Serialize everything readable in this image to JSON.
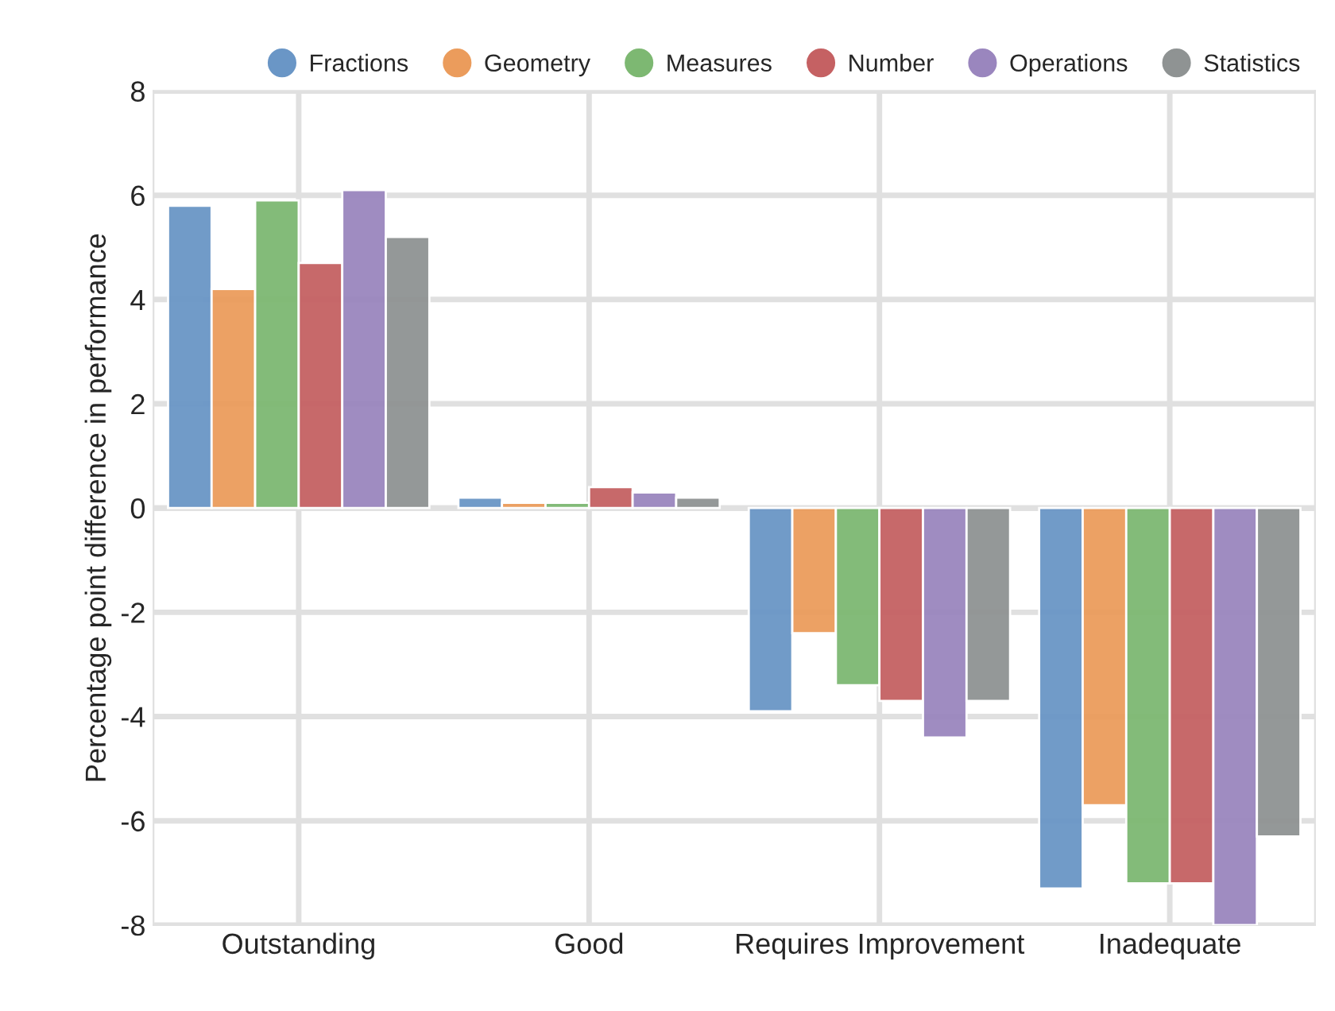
{
  "chart_data": {
    "type": "bar",
    "ylabel": "Percentage point difference in performance",
    "categories": [
      "Outstanding",
      "Good",
      "Requires Improvement",
      "Inadequate"
    ],
    "series": [
      {
        "name": "Fractions",
        "color": "#6a96c6",
        "values": [
          5.8,
          0.2,
          -3.9,
          -7.3
        ]
      },
      {
        "name": "Geometry",
        "color": "#eb9c5c",
        "values": [
          4.2,
          0.1,
          -2.4,
          -5.7
        ]
      },
      {
        "name": "Measures",
        "color": "#7db872",
        "values": [
          5.9,
          0.1,
          -3.4,
          -7.2
        ]
      },
      {
        "name": "Number",
        "color": "#c56163",
        "values": [
          4.7,
          0.4,
          -3.7,
          -7.2
        ]
      },
      {
        "name": "Operations",
        "color": "#9a86be",
        "values": [
          6.1,
          0.3,
          -4.4,
          -8.0
        ]
      },
      {
        "name": "Statistics",
        "color": "#8f9393",
        "values": [
          5.2,
          0.2,
          -3.7,
          -6.3
        ]
      }
    ],
    "ylim": [
      -8,
      8
    ],
    "yticks": [
      -8,
      -6,
      -4,
      -2,
      0,
      2,
      4,
      6,
      8
    ],
    "grid": true,
    "legend": "top"
  }
}
